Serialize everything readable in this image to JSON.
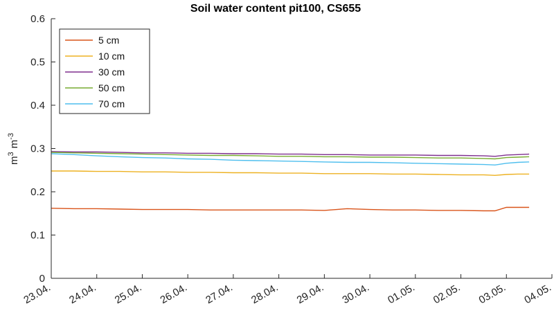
{
  "chart_data": {
    "type": "line",
    "title": "Soil water content pit100, CS655",
    "ylabel": "m 3 m -3",
    "ylabel_parts": {
      "base1": "m",
      "exp1": "3",
      "base2": "m",
      "exp2": "-3"
    },
    "xlabel": "",
    "ylim": [
      0,
      0.6
    ],
    "xlim": [
      0,
      11
    ],
    "yticks": [
      0,
      0.1,
      0.2,
      0.3,
      0.4,
      0.5,
      0.6
    ],
    "ytick_labels": [
      "0",
      "0.1",
      "0.2",
      "0.3",
      "0.4",
      "0.5",
      "0.6"
    ],
    "xticks": [
      0,
      1,
      2,
      3,
      4,
      5,
      6,
      7,
      8,
      9,
      10,
      11
    ],
    "xtick_labels": [
      "23.04.",
      "24.04.",
      "25.04.",
      "26.04.",
      "27.04.",
      "28.04.",
      "29.04.",
      "30.04.",
      "01.05.",
      "02.05.",
      "03.05.",
      "04.05."
    ],
    "grid": false,
    "legend_position": "top-left",
    "x": [
      0,
      0.5,
      1,
      1.5,
      2,
      2.5,
      3,
      3.5,
      4,
      4.5,
      5,
      5.5,
      6,
      6.5,
      7,
      7.5,
      8,
      8.5,
      9,
      9.5,
      9.75,
      10,
      10.25,
      10.5
    ],
    "series": [
      {
        "name": "5 cm",
        "color": "#d95319",
        "values": [
          0.162,
          0.161,
          0.161,
          0.16,
          0.159,
          0.159,
          0.159,
          0.158,
          0.158,
          0.158,
          0.158,
          0.158,
          0.157,
          0.161,
          0.159,
          0.158,
          0.158,
          0.157,
          0.157,
          0.156,
          0.156,
          0.164,
          0.164,
          0.164
        ]
      },
      {
        "name": "10 cm",
        "color": "#edb120",
        "values": [
          0.248,
          0.248,
          0.247,
          0.247,
          0.246,
          0.246,
          0.245,
          0.245,
          0.244,
          0.244,
          0.243,
          0.243,
          0.242,
          0.242,
          0.242,
          0.241,
          0.241,
          0.24,
          0.239,
          0.239,
          0.238,
          0.24,
          0.241,
          0.241
        ]
      },
      {
        "name": "30 cm",
        "color": "#7e2f8e",
        "values": [
          0.293,
          0.292,
          0.292,
          0.291,
          0.29,
          0.29,
          0.289,
          0.289,
          0.288,
          0.288,
          0.287,
          0.287,
          0.286,
          0.286,
          0.285,
          0.285,
          0.285,
          0.284,
          0.284,
          0.283,
          0.282,
          0.285,
          0.286,
          0.287
        ]
      },
      {
        "name": "50 cm",
        "color": "#77ac30",
        "values": [
          0.291,
          0.29,
          0.289,
          0.288,
          0.287,
          0.286,
          0.285,
          0.284,
          0.284,
          0.283,
          0.282,
          0.282,
          0.281,
          0.281,
          0.28,
          0.28,
          0.279,
          0.278,
          0.278,
          0.277,
          0.276,
          0.279,
          0.28,
          0.281
        ]
      },
      {
        "name": "70 cm",
        "color": "#4dbeee",
        "values": [
          0.288,
          0.286,
          0.283,
          0.281,
          0.279,
          0.278,
          0.276,
          0.275,
          0.273,
          0.272,
          0.271,
          0.27,
          0.269,
          0.268,
          0.268,
          0.267,
          0.266,
          0.265,
          0.264,
          0.263,
          0.262,
          0.266,
          0.268,
          0.269
        ]
      }
    ]
  }
}
